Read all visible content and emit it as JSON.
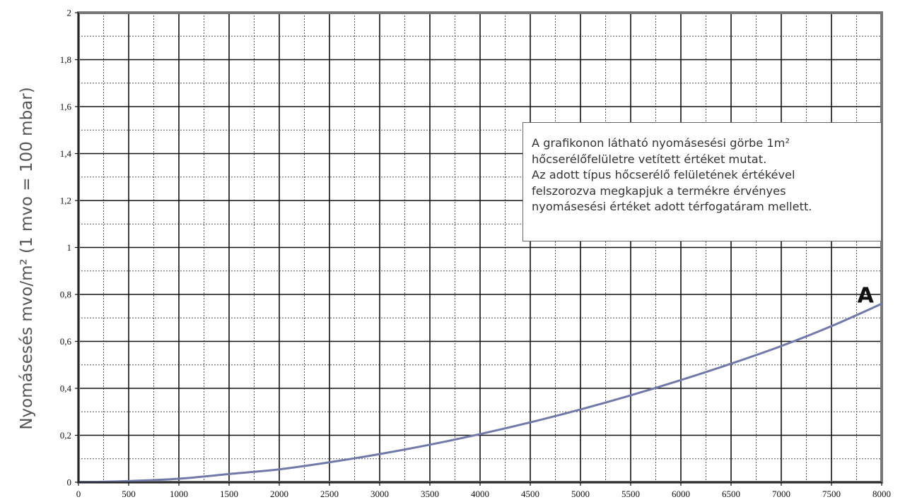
{
  "chart_data": {
    "type": "line",
    "title": "",
    "xlabel": "",
    "ylabel": "Nyomásesés mvo/m² (1 mvo = 100 mbar)",
    "xlim": [
      0,
      8000
    ],
    "ylim": [
      0,
      2
    ],
    "x_ticks": [
      "0",
      "500",
      "1000",
      "1500",
      "2000",
      "2500",
      "3000",
      "3500",
      "4000",
      "4500",
      "5000",
      "5500",
      "6000",
      "6500",
      "7000",
      "7500",
      "8000"
    ],
    "y_ticks": [
      "0",
      "0,2",
      "0,4",
      "0,6",
      "0,8",
      "1",
      "1,2",
      "1,4",
      "1,6",
      "1,8",
      "2"
    ],
    "grid": true,
    "series": [
      {
        "name": "A",
        "color": "#7079a8",
        "x": [
          0,
          500,
          1000,
          1500,
          2000,
          2500,
          3000,
          3500,
          4000,
          4500,
          5000,
          5500,
          6000,
          6500,
          7000,
          7500,
          8000
        ],
        "y": [
          0,
          0.005,
          0.015,
          0.035,
          0.055,
          0.085,
          0.12,
          0.16,
          0.205,
          0.255,
          0.31,
          0.37,
          0.435,
          0.505,
          0.58,
          0.665,
          0.76
        ]
      }
    ],
    "annotation": {
      "lines": [
        "A grafikonon látható nyomásesési görbe 1m²",
        "hőcserélőfelületre vetített értéket mutat.",
        "Az adott típus hőcserélő felületének értékével",
        "felszorozva megkapjuk a termékre érvényes",
        "nyomásesési értéket adott térfogatáram mellett."
      ]
    }
  }
}
